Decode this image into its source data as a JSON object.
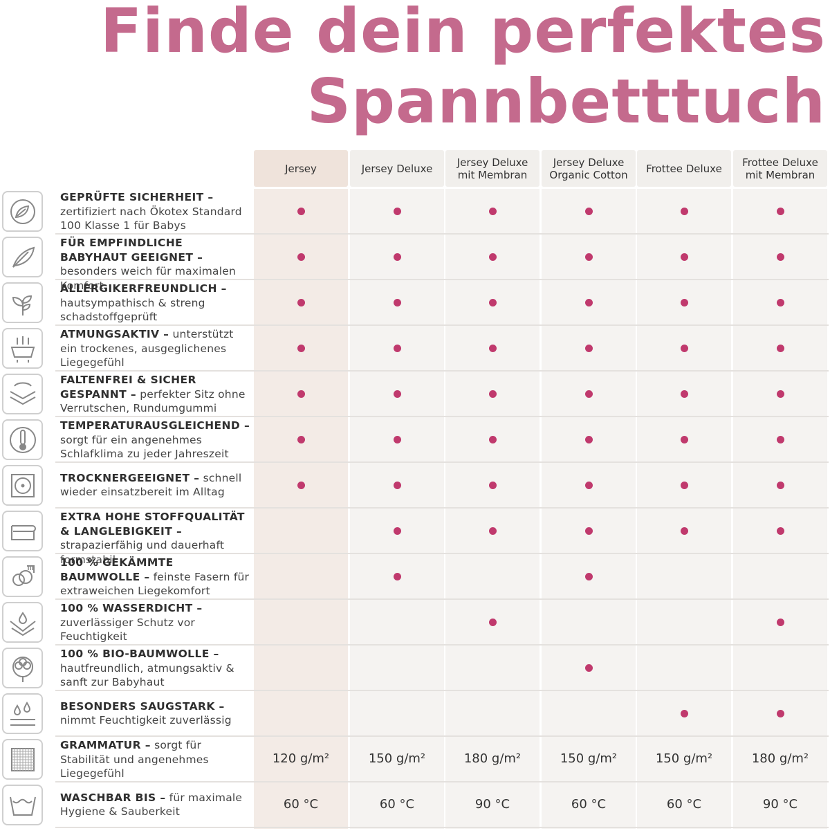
{
  "title": {
    "line1": "Finde dein perfektes",
    "line2": "Spannbetttuch"
  },
  "colors": {
    "title": "#c46a8d",
    "dot": "#c0396d"
  },
  "products": [
    {
      "line1": "Jersey",
      "line2": ""
    },
    {
      "line1": "Jersey Deluxe",
      "line2": ""
    },
    {
      "line1": "Jersey Deluxe",
      "line2": "mit Membran"
    },
    {
      "line1": "Jersey Deluxe",
      "line2": "Organic Cotton"
    },
    {
      "line1": "Frottee Deluxe",
      "line2": ""
    },
    {
      "line1": "Frottee Deluxe",
      "line2": "mit Membran"
    }
  ],
  "features": [
    {
      "icon": "leaves-circle-icon",
      "bold": "GEPRÜFTE SICHERHEIT –",
      "text": "zertifiziert nach Ökotex Standard 100 Klasse 1 für Babys",
      "marks": [
        true,
        true,
        true,
        true,
        true,
        true
      ]
    },
    {
      "icon": "feather-icon",
      "bold": "FÜR EMPFINDLICHE BABYHAUT GEEIGNET –",
      "text": "besonders weich für maximalen Komfort",
      "marks": [
        true,
        true,
        true,
        true,
        true,
        true
      ]
    },
    {
      "icon": "plant-icon",
      "bold": "ALLERGIKERFREUNDLICH –",
      "text": "hautsympathisch & streng schadstoffgeprüft",
      "marks": [
        true,
        true,
        true,
        true,
        true,
        true
      ]
    },
    {
      "icon": "breathable-fabric-icon",
      "bold": "ATMUNGSAKTIV –",
      "text": "unterstützt ein trockenes, ausgeglichenes Liegegefühl",
      "marks": [
        true,
        true,
        true,
        true,
        true,
        true
      ]
    },
    {
      "icon": "fitted-sheet-icon",
      "bold": "FALTENFREI & SICHER GESPANNT –",
      "text": "perfekter Sitz ohne Verrutschen, Rundumgummi",
      "marks": [
        true,
        true,
        true,
        true,
        true,
        true
      ]
    },
    {
      "icon": "thermometer-icon",
      "bold": "TEMPERATURAUSGLEICHEND –",
      "text": "sorgt für ein angenehmes Schlafklima zu jeder Jahreszeit",
      "marks": [
        true,
        true,
        true,
        true,
        true,
        true
      ]
    },
    {
      "icon": "tumble-dryer-icon",
      "bold": "TROCKNERGEEIGNET –",
      "text": "schnell wieder einsatzbereit im Alltag",
      "marks": [
        true,
        true,
        true,
        true,
        true,
        true
      ]
    },
    {
      "icon": "folded-fabric-icon",
      "bold": "EXTRA HOHE STOFFQUALITÄT & LANGLEBIGKEIT –",
      "text": "strapazierfähig und dauerhaft formstabil",
      "marks": [
        false,
        true,
        true,
        true,
        true,
        true
      ]
    },
    {
      "icon": "combed-cotton-icon",
      "bold": "100 % GEKÄMMTE BAUMWOLLE –",
      "text": "feinste Fasern für extraweichen Liegekomfort",
      "marks": [
        false,
        true,
        false,
        true,
        false,
        false
      ]
    },
    {
      "icon": "waterproof-icon",
      "bold": "100 % WASSERDICHT –",
      "text": "zuverlässiger Schutz vor Feuchtigkeit",
      "marks": [
        false,
        false,
        true,
        false,
        false,
        true
      ]
    },
    {
      "icon": "cotton-flower-icon",
      "bold": "100 % BIO-BAUMWOLLE –",
      "text": "hautfreundlich, atmungsaktiv & sanft zur Babyhaut",
      "marks": [
        false,
        false,
        false,
        true,
        false,
        false
      ]
    },
    {
      "icon": "absorbent-drops-icon",
      "bold": "BESONDERS SAUGSTARK –",
      "text": "nimmt Feuchtigkeit zuverlässig",
      "marks": [
        false,
        false,
        false,
        false,
        true,
        true
      ]
    },
    {
      "icon": "fabric-weave-icon",
      "bold": "GRAMMATUR –",
      "text": "sorgt für Stabilität und angenehmes Liegegefühl",
      "values": [
        "120 g/m²",
        "150 g/m²",
        "180 g/m²",
        "150 g/m²",
        "150 g/m²",
        "180 g/m²"
      ]
    },
    {
      "icon": "wash-tub-icon",
      "bold": "WASCHBAR BIS –",
      "text": "für maximale Hygiene & Sauberkeit",
      "values": [
        "60 °C",
        "60 °C",
        "90 °C",
        "60 °C",
        "60 °C",
        "90 °C"
      ]
    }
  ]
}
